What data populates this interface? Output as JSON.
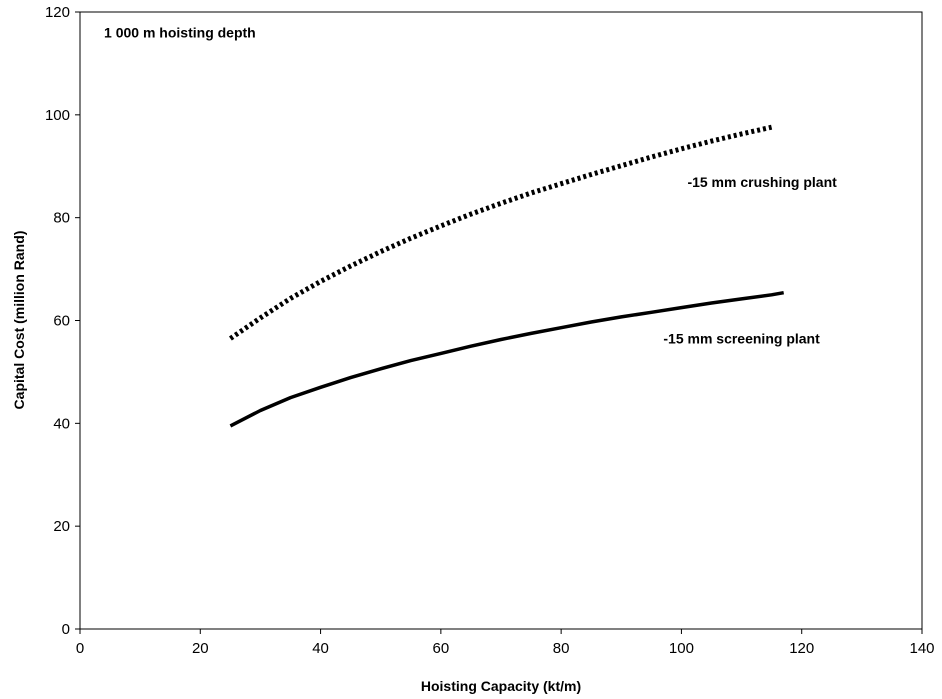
{
  "chart_data": {
    "type": "line",
    "xlabel": "Hoisting Capacity (kt/m)",
    "ylabel": "Capital Cost (million Rand)",
    "xlim": [
      0,
      140
    ],
    "ylim": [
      0,
      120
    ],
    "xticks": [
      0,
      20,
      40,
      60,
      80,
      100,
      120,
      140
    ],
    "yticks": [
      0,
      20,
      40,
      60,
      80,
      100,
      120
    ],
    "grid": false,
    "legend": "none",
    "series": [
      {
        "name": "-15 mm crushing plant",
        "style": "dotted",
        "color": "#000000",
        "x": [
          25,
          30,
          35,
          40,
          45,
          50,
          55,
          60,
          65,
          70,
          75,
          80,
          85,
          90,
          95,
          100,
          105,
          110,
          115
        ],
        "y": [
          56.5,
          60.5,
          64.3,
          67.6,
          70.6,
          73.4,
          76.0,
          78.4,
          80.7,
          82.8,
          84.8,
          86.6,
          88.4,
          90.1,
          91.8,
          93.4,
          94.9,
          96.3,
          97.6
        ]
      },
      {
        "name": "-15 mm screening plant",
        "style": "solid",
        "color": "#000000",
        "x": [
          25,
          30,
          35,
          40,
          45,
          50,
          55,
          60,
          65,
          70,
          75,
          80,
          85,
          90,
          95,
          100,
          105,
          110,
          115,
          117
        ],
        "y": [
          39.5,
          42.5,
          45.0,
          47.0,
          48.9,
          50.6,
          52.2,
          53.6,
          55.0,
          56.3,
          57.5,
          58.6,
          59.7,
          60.7,
          61.6,
          62.5,
          63.4,
          64.2,
          65.0,
          65.4
        ]
      }
    ],
    "annotations": [
      {
        "text": "1 000 m hoisting depth",
        "x": 4,
        "y": 115
      },
      {
        "text": "-15 mm crushing plant",
        "x": 101,
        "y": 86
      },
      {
        "text": "-15 mm screening plant",
        "x": 97,
        "y": 55.5
      }
    ]
  }
}
